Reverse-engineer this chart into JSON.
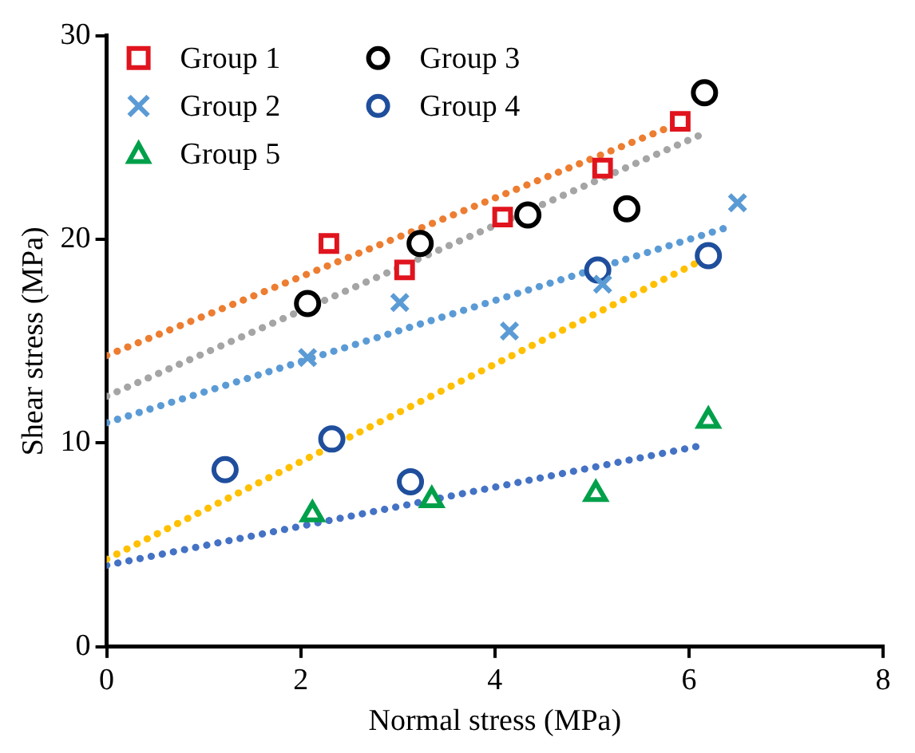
{
  "chart_data": {
    "type": "scatter",
    "xlabel": "Normal stress (MPa)",
    "ylabel": "Shear stress (MPa)",
    "xlim": [
      0,
      8
    ],
    "xticks": [
      0,
      2,
      4,
      6,
      8
    ],
    "ylim": [
      0,
      30
    ],
    "yticks": [
      0,
      10,
      20,
      30
    ],
    "grid": false,
    "legend": "top left",
    "series": [
      {
        "name": "Group 1",
        "color": "#e0141e",
        "marker": "square",
        "x": [
          2.29,
          3.07,
          4.08,
          5.11,
          5.91
        ],
        "values": [
          19.8,
          18.5,
          21.1,
          23.5,
          25.8
        ]
      },
      {
        "name": "Group 2",
        "color": "#5b9bd5",
        "marker": "cross",
        "x": [
          2.07,
          3.02,
          4.15,
          5.11,
          6.5
        ],
        "values": [
          14.2,
          16.9,
          15.5,
          17.8,
          21.8
        ]
      },
      {
        "name": "Group 5",
        "color": "#00a04a",
        "marker": "triangle",
        "x": [
          2.12,
          3.35,
          5.04,
          6.2
        ],
        "values": [
          6.5,
          7.2,
          7.5,
          11.1
        ]
      },
      {
        "name": "Group 3",
        "color": "#000000",
        "marker": "circle",
        "x": [
          2.07,
          3.23,
          4.34,
          5.36,
          6.16
        ],
        "values": [
          16.85,
          19.8,
          21.2,
          21.5,
          27.2
        ]
      },
      {
        "name": "Group 4",
        "color": "#1f4e9c",
        "marker": "circle",
        "x": [
          1.22,
          2.32,
          3.13,
          5.06,
          6.2
        ],
        "values": [
          8.7,
          10.2,
          8.1,
          18.5,
          19.2
        ]
      },
      {
        "type": "line",
        "color": "#ed7d31",
        "marker": "none",
        "line_style": "dotted",
        "x": [
          0,
          6.0
        ],
        "values": [
          14.3,
          25.9
        ]
      },
      {
        "type": "line",
        "color": "#5b9bd5",
        "marker": "none",
        "line_style": "dotted",
        "x": [
          0,
          6.4
        ],
        "values": [
          11.0,
          20.6
        ]
      },
      {
        "type": "line",
        "color": "#a5a5a5",
        "marker": "none",
        "line_style": "dotted",
        "x": [
          0,
          6.2
        ],
        "values": [
          12.3,
          25.3
        ]
      },
      {
        "type": "line",
        "color": "#ffc000",
        "marker": "none",
        "line_style": "dotted",
        "x": [
          0,
          6.1
        ],
        "values": [
          4.3,
          18.9
        ]
      },
      {
        "type": "line",
        "color": "#4472c4",
        "marker": "none",
        "line_style": "dotted",
        "x": [
          0,
          6.15
        ],
        "values": [
          4.0,
          9.9
        ]
      }
    ]
  }
}
